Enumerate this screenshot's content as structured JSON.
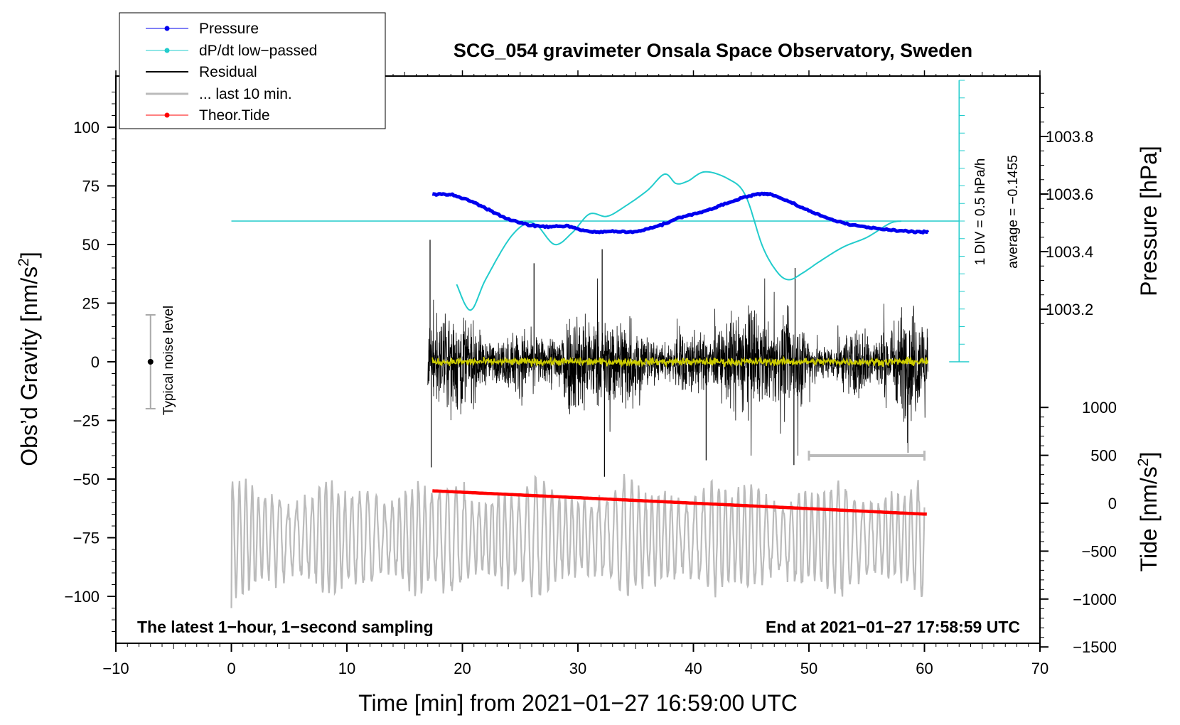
{
  "chart_data": {
    "type": "line",
    "title": "SCG_054 gravimeter Onsala Space Observatory, Sweden",
    "xlabel": "Time [min] from 2021−01−27 16:59:00 UTC",
    "ylabel_left_main": "Obs’d Gravity [nm/s",
    "ylabel_left_sup": "2",
    "ylabel_left_end": "]",
    "ylabel_right_pressure": "Pressure [hPa]",
    "ylabel_right_tide_main": "Tide [nm/s",
    "ylabel_right_tide_sup": "2",
    "ylabel_right_tide_end": "]",
    "xlim": [
      -10,
      70
    ],
    "ylim_gravity": [
      -120,
      120
    ],
    "ylim_pressure": [
      1003.0,
      1004.0
    ],
    "ylim_tide": [
      -1500,
      1000
    ],
    "x_ticks": [
      "−10",
      "0",
      "10",
      "20",
      "30",
      "40",
      "50",
      "60",
      "70"
    ],
    "gravity_ticks": [
      "100",
      "75",
      "50",
      "25",
      "0",
      "−25",
      "−50",
      "−75",
      "−100"
    ],
    "pressure_ticks": [
      "1003.8",
      "1003.6",
      "1003.4",
      "1003.2"
    ],
    "tide_ticks": [
      "1000",
      "500",
      "0",
      "−500",
      "−1000",
      "−1500"
    ],
    "legend": [
      "Pressure",
      "dP/dt low−passed",
      "Residual",
      "... last 10 min.",
      "Theor.Tide"
    ],
    "footer_left": "The latest 1−hour, 1−second sampling",
    "footer_right": "End at 2021−01−27 17:58:59 UTC",
    "noise_label": "Typical noise level",
    "div_label": "1 DIV = 0.5 hPa/h",
    "average_label": "average = −0.1455",
    "series": [
      {
        "name": "Pressure",
        "unit": "hPa",
        "color": "#0000ee",
        "x": [
          17.4,
          19,
          21,
          23,
          25,
          27,
          29,
          31,
          33,
          35,
          37,
          39,
          41,
          43,
          45,
          46,
          47,
          49,
          51,
          53,
          55,
          57,
          59,
          60.3
        ],
        "y": [
          1003.6,
          1003.597,
          1003.57,
          1003.53,
          1003.5,
          1003.487,
          1003.488,
          1003.47,
          1003.47,
          1003.47,
          1003.49,
          1003.52,
          1003.54,
          1003.57,
          1003.595,
          1003.6,
          1003.595,
          1003.56,
          1003.525,
          1003.5,
          1003.485,
          1003.475,
          1003.47,
          1003.468
        ]
      },
      {
        "name": "dP/dt low-passed",
        "unit": "nm/s2 plot scale",
        "color": "#22cccc",
        "x": [
          19.5,
          20.7,
          22,
          24,
          25.5,
          26.5,
          28,
          29.5,
          31,
          32.5,
          34,
          36,
          37.5,
          38.5,
          39.5,
          41,
          43,
          44.5,
          46,
          47.3,
          48.3,
          49.5,
          51,
          53,
          55,
          57,
          58
        ],
        "y": [
          33,
          22,
          35,
          52,
          59,
          58,
          50,
          55,
          63,
          62,
          66,
          73,
          80,
          76,
          77,
          81,
          78,
          71,
          49,
          38,
          35,
          38,
          43,
          49,
          53,
          59,
          60
        ]
      },
      {
        "name": "dP/dt reference line",
        "unit": "nm/s2 plot scale",
        "color": "#22cccc",
        "x": [
          0,
          63
        ],
        "y": [
          60,
          60
        ]
      },
      {
        "name": "Residual",
        "unit": "nm/s2",
        "color": "#000000",
        "x_range": [
          17.0,
          60.3
        ],
        "typical_amplitude": 15,
        "extremes": [
          {
            "x": 17.2,
            "y": 52
          },
          {
            "x": 17.3,
            "y": -45
          },
          {
            "x": 26.2,
            "y": 42
          },
          {
            "x": 32.1,
            "y": 48
          },
          {
            "x": 32.3,
            "y": -49
          },
          {
            "x": 41.1,
            "y": -42
          },
          {
            "x": 48.8,
            "y": 40
          },
          {
            "x": 48.7,
            "y": -44
          }
        ]
      },
      {
        "name": "Residual running mean",
        "unit": "nm/s2",
        "color": "#cccc00",
        "x_range": [
          17.4,
          60.3
        ],
        "typical_amplitude": 2
      },
      {
        "name": "... last 10 min.",
        "unit": "nm/s2",
        "color": "#bbbbbb",
        "x_range": [
          0,
          60
        ],
        "typical_amplitude": 25,
        "center": -75,
        "first_value": -105
      },
      {
        "name": "Theor.Tide",
        "unit": "nm/s2",
        "color": "#ff0000",
        "x": [
          17.4,
          60.3
        ],
        "y": [
          -55,
          -65
        ]
      },
      {
        "name": "Last 10 min marker",
        "unit": "min",
        "color": "#bbbbbb",
        "x": [
          50,
          60
        ],
        "y": [
          -40,
          -40
        ]
      },
      {
        "name": "Typical noise level",
        "unit": "nm/s2",
        "color": "#000000",
        "x": [
          -7,
          -7
        ],
        "y": [
          -20,
          20
        ],
        "center": 0
      }
    ]
  }
}
